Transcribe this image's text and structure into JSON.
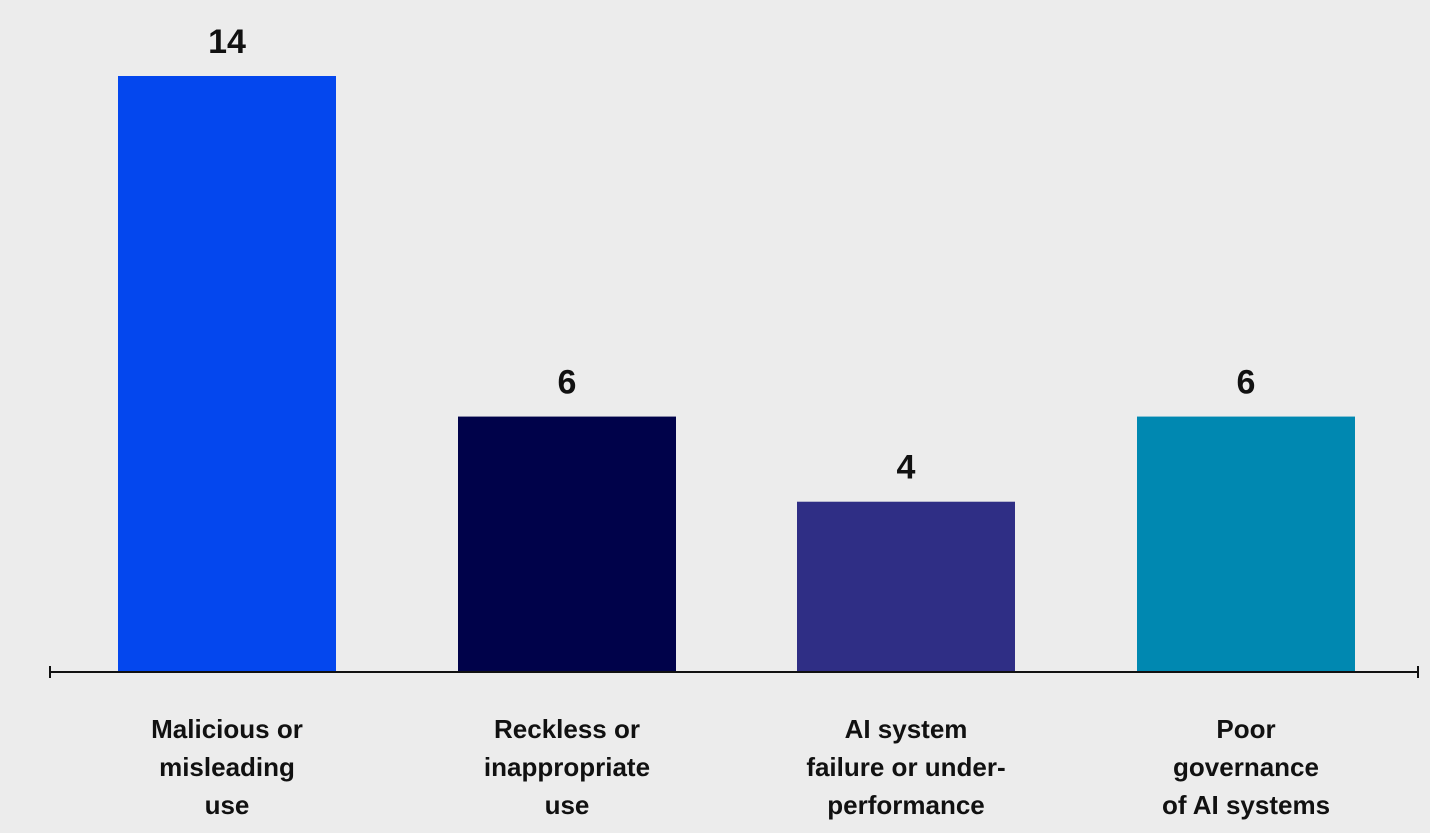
{
  "chart_data": {
    "type": "bar",
    "categories": [
      [
        "Malicious or",
        "misleading",
        "use"
      ],
      [
        "Reckless or",
        "inappropriate",
        "use"
      ],
      [
        "AI system",
        "failure or under-",
        "performance"
      ],
      [
        "Poor",
        "governance",
        "of AI systems"
      ]
    ],
    "values": [
      14,
      6,
      4,
      6
    ],
    "colors": [
      "#0447ee",
      "#00024a",
      "#2f2e85",
      "#0088b1"
    ],
    "ylim": [
      0,
      14
    ],
    "grid": false,
    "legend": "none"
  }
}
